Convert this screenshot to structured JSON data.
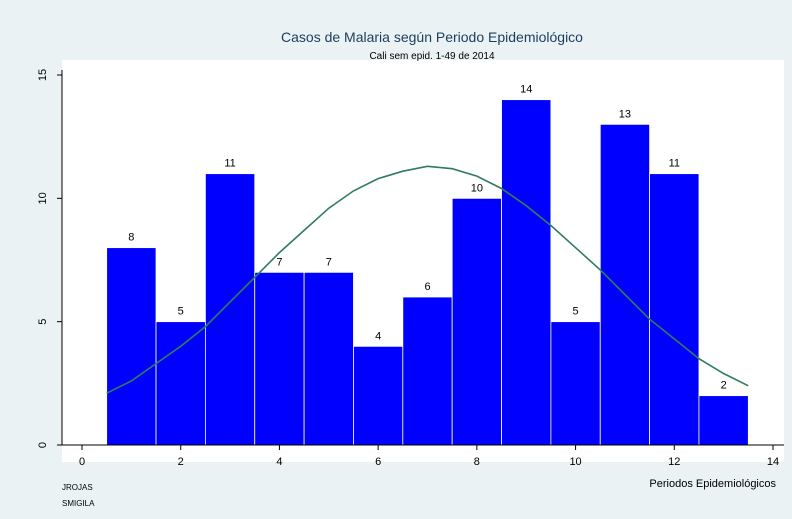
{
  "chart_data": {
    "type": "bar",
    "title": "Casos de Malaria según Periodo Epidemiológico",
    "subtitle": "Cali sem epid. 1-49 de 2014",
    "xlabel": "Periodos Epidemiológicos",
    "ylabel": "",
    "x": [
      1,
      2,
      3,
      4,
      5,
      6,
      7,
      8,
      9,
      10,
      11,
      12,
      13
    ],
    "values": [
      8,
      5,
      11,
      7,
      7,
      4,
      6,
      10,
      14,
      5,
      13,
      11,
      2
    ],
    "bar_width": 1,
    "xlim": [
      -0.5,
      14.5
    ],
    "ylim": [
      0,
      15
    ],
    "xticks": [
      0,
      2,
      4,
      6,
      8,
      10,
      12,
      14
    ],
    "yticks": [
      0,
      5,
      10,
      15
    ],
    "bar_color": "#0000ff",
    "curve_color": "#2e7d5b",
    "curve": {
      "type": "normal-density-overlay",
      "x": [
        0.5,
        1,
        1.5,
        2,
        2.5,
        3,
        3.5,
        4,
        4.5,
        5,
        5.5,
        6,
        6.5,
        7,
        7.5,
        8,
        8.5,
        9,
        9.5,
        10,
        10.5,
        11,
        11.5,
        12,
        12.5,
        13,
        13.5
      ],
      "y": [
        2.1,
        2.6,
        3.3,
        4.0,
        4.8,
        5.8,
        6.8,
        7.8,
        8.7,
        9.6,
        10.3,
        10.8,
        11.1,
        11.3,
        11.2,
        10.9,
        10.4,
        9.7,
        8.9,
        8.0,
        7.1,
        6.1,
        5.1,
        4.3,
        3.5,
        2.9,
        2.4
      ]
    },
    "grid": false,
    "legend": "none"
  },
  "credits": [
    "JROJAS",
    "SMIGILA"
  ],
  "colors": {
    "background": "#eaf2f3",
    "plot_background": "#ffffff",
    "bar_edge": "#ffffff"
  }
}
